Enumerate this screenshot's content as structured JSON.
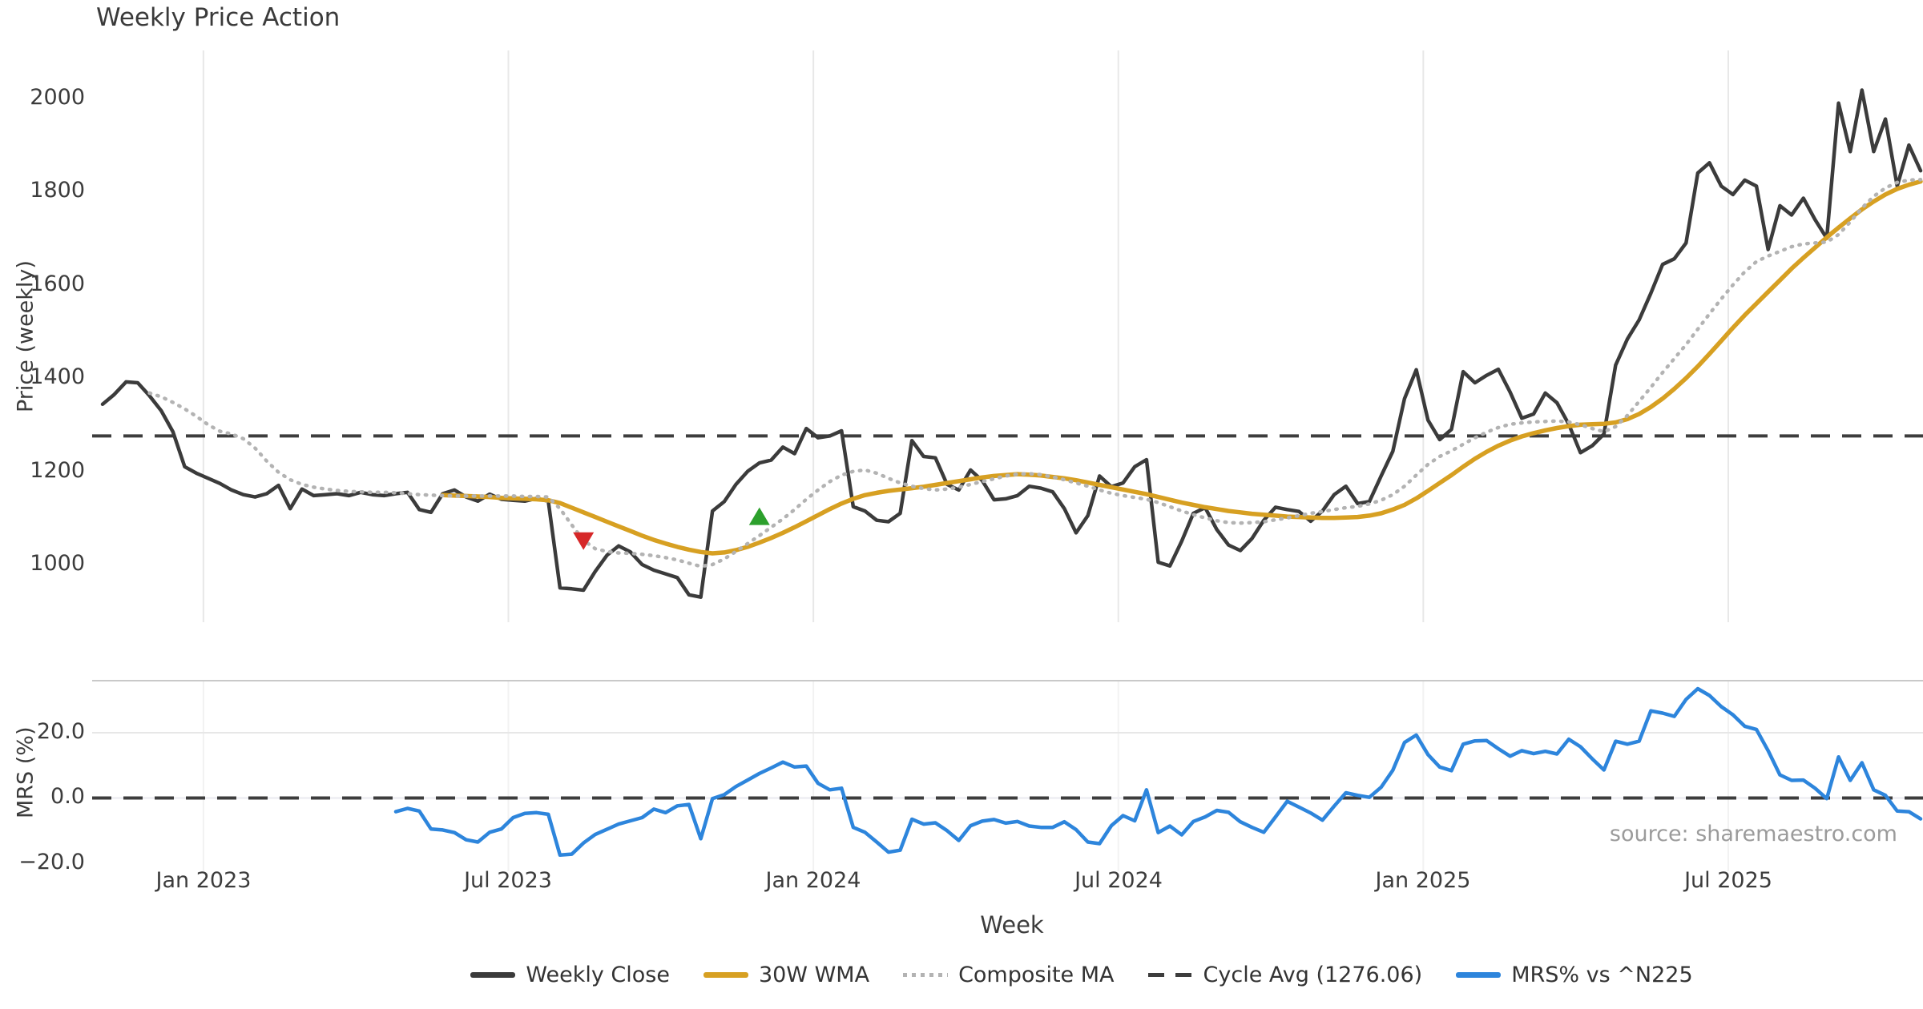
{
  "title": "Weekly Price Action",
  "source": "source: sharemaestro.com",
  "axes": {
    "price_ylabel": "Price (weekly)",
    "mrs_ylabel": "MRS (%)",
    "xlabel": "Week",
    "main_yticks": [
      "2000",
      "1800",
      "1600",
      "1400",
      "1200",
      "1000"
    ],
    "lower_yticks": [
      "20.0",
      "0.0",
      "−20.0"
    ],
    "xticks": [
      "Jan 2023",
      "Jul 2023",
      "Jan 2024",
      "Jul 2024",
      "Jan 2025",
      "Jul 2025"
    ]
  },
  "legend": {
    "items": [
      {
        "label": "Weekly Close",
        "style": "solid",
        "color": "#3b3b3b"
      },
      {
        "label": "30W WMA",
        "style": "solid",
        "color": "#d7a022"
      },
      {
        "label": "Composite MA",
        "style": "dotted",
        "color": "#b3b3b3"
      },
      {
        "label": "Cycle Avg (1276.06)",
        "style": "dashed",
        "color": "#3d3d3d"
      },
      {
        "label": "MRS% vs ^N225",
        "style": "solid",
        "color": "#2d85dc"
      }
    ]
  },
  "chart_data": {
    "type": "line",
    "title": "Weekly Price Action",
    "xlabel": "Week",
    "x_unit": "weeks (Nov 2022 - Nov 2025, 156 weekly points)",
    "x_ticks": {
      "weeks": [
        8.6,
        34.6,
        60.6,
        86.6,
        112.6,
        138.6
      ],
      "labels": [
        "Jan 2023",
        "Jul 2023",
        "Jan 2024",
        "Jul 2024",
        "Jan 2025",
        "Jul 2025"
      ]
    },
    "grid": "vertical-only",
    "legend_position": "bottom-center",
    "panels": [
      {
        "name": "price",
        "ylabel": "Price (weekly)",
        "ylim": [
          876,
          2103
        ],
        "yticks": [
          1000,
          1200,
          1400,
          1600,
          1800,
          2000
        ],
        "series": [
          {
            "name": "Weekly Close",
            "style": "solid",
            "color": "#3b3b3b",
            "width": 4.5,
            "start_week": 0,
            "values": [
              1344,
              1365,
              1392,
              1390,
              1362,
              1330,
              1285,
              1210,
              1196,
              1185,
              1174,
              1160,
              1150,
              1145,
              1152,
              1170,
              1120,
              1162,
              1148,
              1150,
              1152,
              1148,
              1155,
              1150,
              1148,
              1152,
              1155,
              1118,
              1112,
              1152,
              1160,
              1145,
              1136,
              1151,
              1140,
              1138,
              1136,
              1142,
              1136,
              950,
              948,
              945,
              985,
              1020,
              1040,
              1027,
              1000,
              988,
              980,
              972,
              935,
              930,
              1115,
              1135,
              1172,
              1200,
              1218,
              1224,
              1252,
              1238,
              1292,
              1272,
              1276,
              1287,
              1124,
              1115,
              1095,
              1092,
              1110,
              1266,
              1232,
              1229,
              1172,
              1160,
              1203,
              1180,
              1139,
              1141,
              1148,
              1168,
              1164,
              1156,
              1120,
              1068,
              1105,
              1190,
              1167,
              1175,
              1210,
              1225,
              1005,
              997,
              1050,
              1110,
              1122,
              1075,
              1042,
              1030,
              1056,
              1095,
              1123,
              1118,
              1114,
              1093,
              1115,
              1150,
              1168,
              1131,
              1135,
              1190,
              1243,
              1356,
              1418,
              1310,
              1268,
              1290,
              1414,
              1390,
              1406,
              1419,
              1370,
              1314,
              1323,
              1368,
              1347,
              1301,
              1240,
              1255,
              1280,
              1428,
              1484,
              1525,
              1582,
              1644,
              1656,
              1690,
              1840,
              1862,
              1812,
              1794,
              1825,
              1812,
              1676,
              1770,
              1750,
              1786,
              1740,
              1700,
              1990,
              1886,
              2018,
              1886,
              1956,
              1812,
              1900,
              1845
            ]
          },
          {
            "name": "30W WMA",
            "style": "solid",
            "color": "#d7a022",
            "width": 5.5,
            "start_week": 29,
            "values": [
              1149,
              1148,
              1147,
              1146,
              1145,
              1143,
              1142,
              1141,
              1140,
              1138,
              1132,
              1122,
              1112,
              1102,
              1092,
              1082,
              1072,
              1062,
              1053,
              1045,
              1038,
              1032,
              1027,
              1024,
              1026,
              1031,
              1038,
              1047,
              1057,
              1068,
              1080,
              1093,
              1106,
              1119,
              1131,
              1141,
              1149,
              1154,
              1158,
              1161,
              1164,
              1167,
              1171,
              1175,
              1179,
              1183,
              1187,
              1190,
              1192,
              1194,
              1193,
              1191,
              1188,
              1185,
              1181,
              1176,
              1171,
              1166,
              1161,
              1156,
              1151,
              1145,
              1139,
              1133,
              1128,
              1123,
              1119,
              1115,
              1112,
              1109,
              1107,
              1105,
              1103,
              1102,
              1101,
              1100,
              1100,
              1101,
              1102,
              1105,
              1110,
              1118,
              1128,
              1142,
              1158,
              1175,
              1192,
              1210,
              1227,
              1242,
              1255,
              1266,
              1275,
              1282,
              1288,
              1293,
              1297,
              1300,
              1301,
              1302,
              1305,
              1312,
              1323,
              1338,
              1356,
              1377,
              1400,
              1425,
              1452,
              1480,
              1508,
              1535,
              1560,
              1585,
              1610,
              1635,
              1658,
              1680,
              1702,
              1723,
              1743,
              1762,
              1779,
              1794,
              1806,
              1815,
              1822
            ]
          },
          {
            "name": "Composite MA",
            "style": "dotted",
            "color": "#b3b3b3",
            "width": 4.5,
            "start_week": 4,
            "values": [
              1368,
              1360,
              1348,
              1334,
              1318,
              1300,
              1286,
              1280,
              1270,
              1250,
              1222,
              1198,
              1182,
              1172,
              1166,
              1162,
              1159,
              1157,
              1156,
              1155,
              1155,
              1154,
              1152,
              1150,
              1149,
              1148,
              1147,
              1147,
              1147,
              1147,
              1147,
              1147,
              1146,
              1146,
              1145,
              1120,
              1085,
              1052,
              1034,
              1028,
              1025,
              1024,
              1022,
              1019,
              1015,
              1010,
              1003,
              996,
              1000,
              1012,
              1028,
              1045,
              1062,
              1080,
              1098,
              1118,
              1140,
              1160,
              1178,
              1192,
              1200,
              1203,
              1196,
              1185,
              1175,
              1168,
              1163,
              1160,
              1162,
              1166,
              1172,
              1178,
              1184,
              1190,
              1194,
              1195,
              1193,
              1188,
              1182,
              1175,
              1168,
              1160,
              1153,
              1148,
              1144,
              1140,
              1133,
              1124,
              1115,
              1107,
              1100,
              1094,
              1090,
              1089,
              1090,
              1092,
              1096,
              1100,
              1105,
              1110,
              1114,
              1118,
              1122,
              1125,
              1130,
              1138,
              1150,
              1168,
              1192,
              1215,
              1232,
              1244,
              1258,
              1272,
              1284,
              1294,
              1301,
              1304,
              1306,
              1307,
              1308,
              1306,
              1300,
              1292,
              1285,
              1296,
              1320,
              1350,
              1380,
              1412,
              1442,
              1472,
              1505,
              1538,
              1570,
              1600,
              1628,
              1650,
              1662,
              1672,
              1682,
              1688,
              1690,
              1692,
              1708,
              1735,
              1765,
              1790,
              1808,
              1820,
              1825,
              1826
            ]
          },
          {
            "name": "Cycle Avg",
            "style": "dashed",
            "color": "#3d3d3d",
            "width": 4,
            "type": "hline",
            "value": 1276.06
          }
        ],
        "markers": [
          {
            "name": "sell",
            "shape": "triangle-down",
            "color": "#d62728",
            "week": 41,
            "value": 1052
          },
          {
            "name": "buy",
            "shape": "triangle-up",
            "color": "#2ca02c",
            "week": 56,
            "value": 1102
          }
        ]
      },
      {
        "name": "mrs",
        "ylabel": "MRS (%)",
        "ylim": [
          -22.5,
          36
        ],
        "yticks": [
          -20,
          0,
          20
        ],
        "series": [
          {
            "name": "MRS% vs ^N225",
            "style": "solid",
            "color": "#2d85dc",
            "width": 4.5,
            "start_week": 25,
            "values": [
              -4.2,
              -3.2,
              -4.0,
              -9.5,
              -9.8,
              -10.6,
              -12.8,
              -13.5,
              -10.5,
              -9.5,
              -6.0,
              -4.7,
              -4.5,
              -5.0,
              -17.5,
              -17.2,
              -13.8,
              -11.2,
              -9.6,
              -8.0,
              -7.0,
              -6.0,
              -3.4,
              -4.5,
              -2.4,
              -2.0,
              -12.5,
              -0.2,
              1.0,
              3.5,
              5.5,
              7.5,
              9.2,
              11.0,
              9.5,
              9.8,
              4.5,
              2.5,
              3.0,
              -9.0,
              -10.5,
              -13.5,
              -16.6,
              -16.0,
              -6.5,
              -8.0,
              -7.6,
              -10.0,
              -13.0,
              -8.5,
              -7.1,
              -6.6,
              -7.7,
              -7.2,
              -8.6,
              -9.0,
              -9.0,
              -7.3,
              -9.7,
              -13.5,
              -14.0,
              -8.5,
              -5.4,
              -7.0,
              2.5,
              -10.6,
              -8.6,
              -11.3,
              -7.2,
              -5.8,
              -3.8,
              -4.4,
              -7.3,
              -9.0,
              -10.5,
              -5.8,
              -1.0,
              -2.8,
              -4.6,
              -6.8,
              -2.5,
              1.6,
              0.8,
              0.2,
              3.3,
              8.5,
              17.0,
              19.3,
              13.3,
              9.5,
              8.4,
              16.5,
              17.5,
              17.6,
              15.1,
              12.8,
              14.5,
              13.6,
              14.3,
              13.5,
              18.0,
              15.7,
              12.0,
              8.6,
              17.4,
              16.5,
              17.4,
              26.7,
              26.0,
              25.0,
              30.2,
              33.5,
              31.4,
              28.0,
              25.5,
              22.0,
              21.0,
              14.5,
              7.1,
              5.4,
              5.5,
              3.0,
              -0.2,
              12.6,
              5.4,
              10.8,
              2.5,
              0.8,
              -4.0,
              -4.2,
              -6.4
            ]
          },
          {
            "name": "Zero Line",
            "style": "dashed",
            "color": "#3d3d3d",
            "width": 4,
            "type": "hline",
            "value": 0
          }
        ]
      }
    ]
  }
}
